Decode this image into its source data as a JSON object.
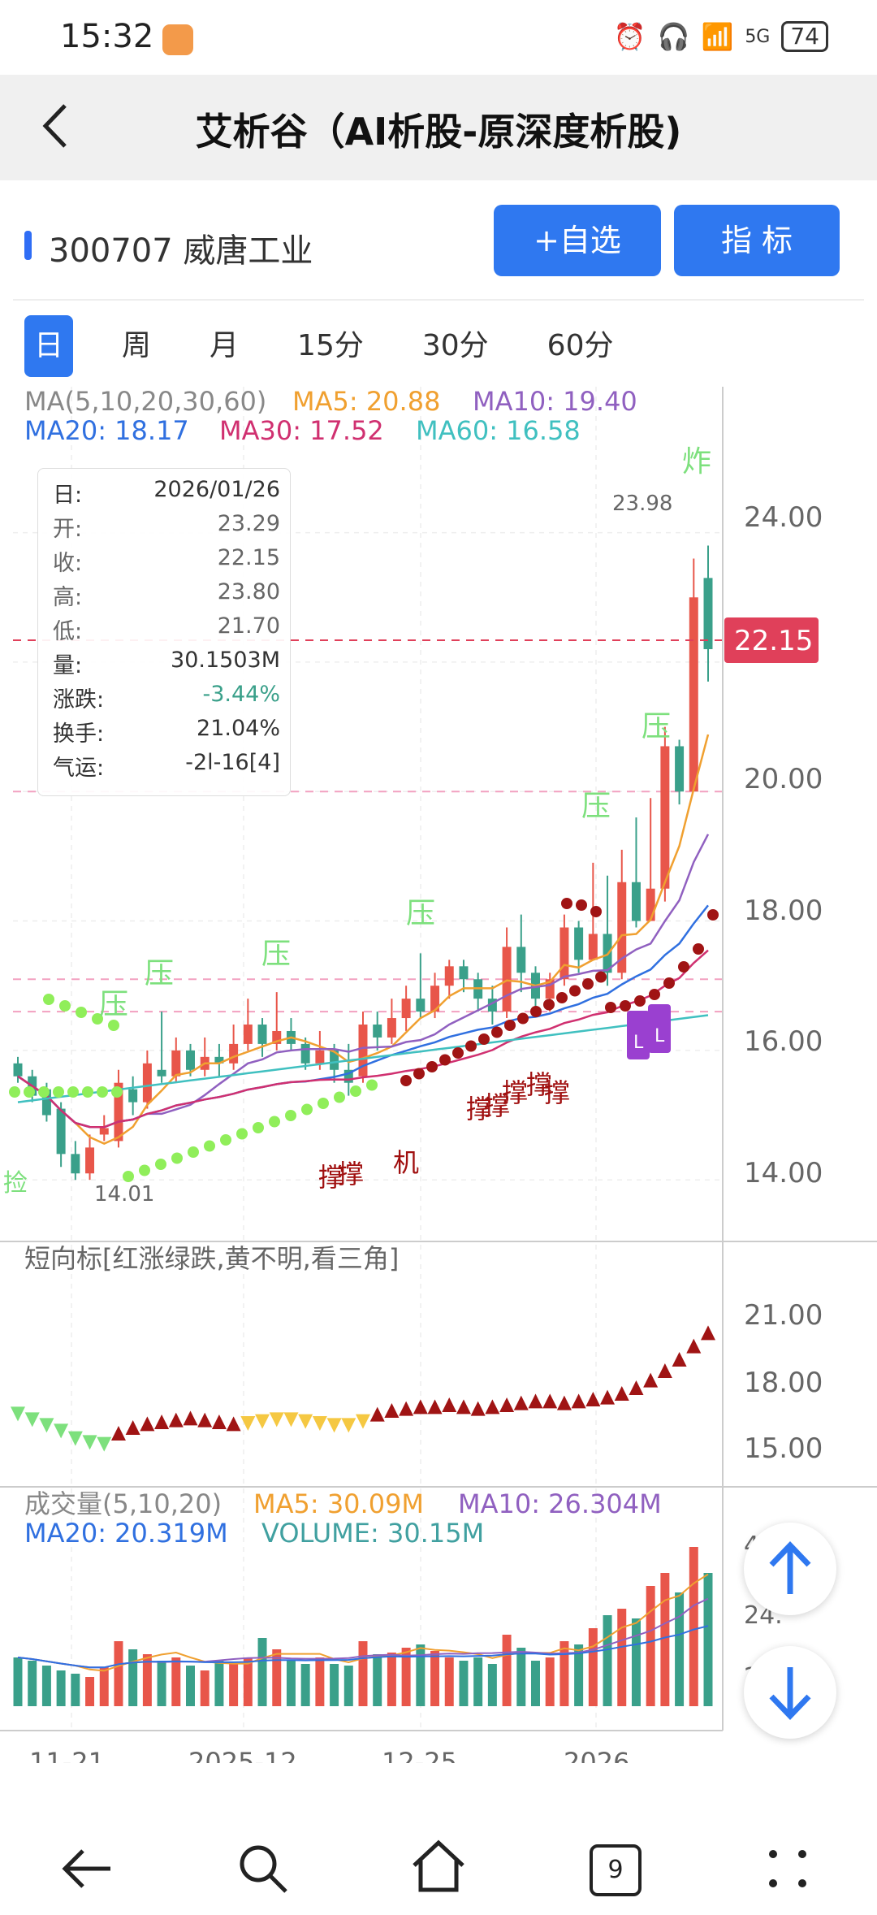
{
  "status": {
    "time": "15:32",
    "battery": "74",
    "signal": "5G"
  },
  "header": {
    "title": "艾析谷（AI析股-原深度析股)"
  },
  "stock": {
    "code_name": "300707 威唐工业"
  },
  "buttons": {
    "watchlist": "+自选",
    "indicator": "指  标"
  },
  "tabs": [
    {
      "label": "日",
      "active": true
    },
    {
      "label": "周",
      "active": false
    },
    {
      "label": "月",
      "active": false
    },
    {
      "label": "15分",
      "active": false
    },
    {
      "label": "30分",
      "active": false
    },
    {
      "label": "60分",
      "active": false
    }
  ],
  "ma_legend": {
    "title": "MA(5,10,20,30,60)",
    "ma5": "MA5: 20.88",
    "ma10": "MA10: 19.40",
    "ma20": "MA20: 18.17",
    "ma30": "MA30: 17.52",
    "ma60": "MA60: 16.58"
  },
  "info_box": [
    {
      "k": "日:",
      "v": "2026/01/26"
    },
    {
      "k": "开:",
      "v": "23.29"
    },
    {
      "k": "收:",
      "v": "22.15"
    },
    {
      "k": "高:",
      "v": "23.80"
    },
    {
      "k": "低:",
      "v": "21.70"
    },
    {
      "k": "量:",
      "v": "30.1503M"
    },
    {
      "k": "涨跌:",
      "v": "-3.44%"
    },
    {
      "k": "换手:",
      "v": "21.04%"
    },
    {
      "k": "气运:",
      "v": "-2l-16[4]"
    }
  ],
  "price_axis": [
    "24.00",
    "20.00",
    "18.00",
    "16.00",
    "14.00"
  ],
  "current_price": "22.15",
  "high_marker": "23.98",
  "low_marker": "14.01",
  "annotations": {
    "zha": "炸",
    "ya": "压",
    "cheng": "撑",
    "ji": "机",
    "jian": "捡",
    "L": "L"
  },
  "indicator_panel": {
    "title": "短向标[红涨绿跌,黄不明,看三角]",
    "axis": [
      "21.00",
      "18.00",
      "15.00"
    ]
  },
  "volume_panel": {
    "title": "成交量(5,10,20)",
    "ma5": "MA5: 30.09M",
    "ma10": "MA10: 26.304M",
    "ma20": "MA20: 20.319M",
    "volume": "VOLUME: 30.15M",
    "axis_partial": [
      "4",
      "24.",
      "2"
    ]
  },
  "date_axis": [
    "11-21",
    "2025-12",
    "12-25",
    "2026"
  ],
  "nav": {
    "tab_count": "9"
  },
  "colors": {
    "up": "#e8564a",
    "down": "#3aa08a",
    "accent": "#2f78f0",
    "ma5": "#f0a030",
    "ma10": "#9060c0",
    "ma20": "#3070e0",
    "ma30": "#d03070",
    "ma60": "#40c0c0"
  },
  "chart_data": {
    "type": "candlestick",
    "ylim": [
      13.4,
      25.2
    ],
    "candles": [
      [
        15.8,
        15.6,
        15.9,
        15.5
      ],
      [
        15.6,
        15.3,
        15.7,
        15.2
      ],
      [
        15.4,
        15.0,
        15.5,
        14.9
      ],
      [
        15.1,
        14.4,
        15.2,
        14.2
      ],
      [
        14.4,
        14.1,
        14.6,
        14.0
      ],
      [
        14.1,
        14.5,
        14.7,
        14.0
      ],
      [
        14.7,
        14.8,
        15.0,
        14.6
      ],
      [
        14.6,
        15.5,
        15.7,
        14.5
      ],
      [
        15.4,
        15.2,
        15.6,
        15.0
      ],
      [
        15.2,
        15.8,
        16.0,
        15.1
      ],
      [
        15.7,
        15.6,
        16.6,
        15.5
      ],
      [
        15.6,
        16.0,
        16.2,
        15.5
      ],
      [
        16.0,
        15.7,
        16.1,
        15.6
      ],
      [
        15.7,
        15.9,
        16.2,
        15.6
      ],
      [
        15.9,
        15.8,
        16.1,
        15.6
      ],
      [
        15.8,
        16.1,
        16.4,
        15.7
      ],
      [
        16.1,
        16.4,
        16.8,
        16.0
      ],
      [
        16.4,
        16.1,
        16.5,
        15.9
      ],
      [
        16.1,
        16.3,
        16.9,
        16.0
      ],
      [
        16.3,
        16.1,
        16.5,
        16.0
      ],
      [
        16.1,
        15.8,
        16.2,
        15.7
      ],
      [
        15.8,
        16.0,
        16.3,
        15.7
      ],
      [
        16.0,
        15.7,
        16.1,
        15.5
      ],
      [
        15.7,
        15.5,
        16.1,
        15.3
      ],
      [
        15.6,
        16.4,
        16.6,
        15.5
      ],
      [
        16.4,
        16.2,
        16.6,
        16.0
      ],
      [
        16.2,
        16.5,
        16.8,
        16.1
      ],
      [
        16.5,
        16.8,
        17.0,
        16.3
      ],
      [
        16.8,
        16.6,
        17.5,
        16.5
      ],
      [
        16.6,
        17.0,
        17.2,
        16.5
      ],
      [
        17.0,
        17.3,
        17.4,
        16.8
      ],
      [
        17.3,
        17.1,
        17.4,
        16.9
      ],
      [
        17.1,
        16.8,
        17.2,
        16.6
      ],
      [
        16.8,
        16.6,
        17.0,
        16.4
      ],
      [
        16.6,
        17.6,
        17.9,
        16.5
      ],
      [
        17.6,
        17.2,
        18.1,
        16.9
      ],
      [
        17.2,
        16.8,
        17.3,
        16.6
      ],
      [
        16.8,
        17.1,
        17.2,
        16.6
      ],
      [
        17.1,
        17.9,
        18.1,
        17.0
      ],
      [
        17.9,
        17.4,
        18.0,
        17.2
      ],
      [
        17.4,
        17.8,
        18.9,
        17.5
      ],
      [
        17.8,
        17.2,
        18.7,
        17.0
      ],
      [
        17.2,
        18.6,
        19.1,
        17.1
      ],
      [
        18.6,
        18.0,
        19.6,
        17.9
      ],
      [
        18.0,
        18.5,
        19.9,
        18.1
      ],
      [
        18.5,
        20.7,
        21.0,
        18.3
      ],
      [
        20.7,
        20.0,
        20.8,
        19.8
      ],
      [
        20.0,
        23.0,
        23.6,
        20.0
      ],
      [
        23.3,
        22.2,
        23.8,
        21.7
      ]
    ],
    "volume": [
      30,
      28,
      25,
      22,
      20,
      18,
      24,
      40,
      35,
      32,
      28,
      30,
      25,
      22,
      28,
      26,
      30,
      42,
      35,
      28,
      26,
      30,
      26,
      25,
      40,
      32,
      33,
      36,
      38,
      34,
      30,
      28,
      30,
      26,
      44,
      36,
      28,
      30,
      40,
      38,
      48,
      56,
      60,
      54,
      74,
      82,
      70,
      98,
      82
    ]
  }
}
